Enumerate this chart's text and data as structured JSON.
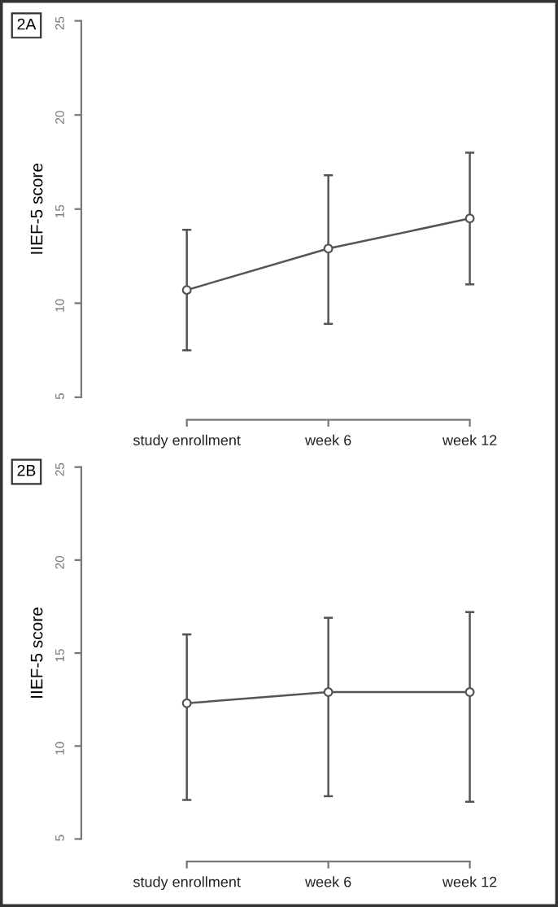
{
  "chart_data": [
    {
      "type": "line",
      "annotations": [
        "2A"
      ],
      "ylabel": "IIEF-5 score",
      "categories": [
        "study enrollment",
        "week 6",
        "week 12"
      ],
      "series": [
        {
          "color": "#555555",
          "values": [
            10.7,
            12.9,
            14.5
          ],
          "errors": [
            [
              7.5,
              13.9
            ],
            [
              8.9,
              16.8
            ],
            [
              11.0,
              18.0
            ]
          ]
        }
      ],
      "ylim": [
        5,
        25
      ],
      "yticks": [
        5,
        10,
        15,
        20,
        25
      ],
      "marker": "circle",
      "line_style": "solid"
    },
    {
      "type": "line",
      "annotations": [
        "2B"
      ],
      "ylabel": "IIEF-5 score",
      "categories": [
        "study enrollment",
        "week 6",
        "week 12"
      ],
      "series": [
        {
          "color": "#555555",
          "values": [
            12.3,
            12.9,
            12.9
          ],
          "errors": [
            [
              7.1,
              16.0
            ],
            [
              7.3,
              16.9
            ],
            [
              7.0,
              17.2
            ]
          ]
        }
      ],
      "ylim": [
        5,
        25
      ],
      "yticks": [
        5,
        10,
        15,
        20,
        25
      ],
      "marker": "circle",
      "line_style": "solid"
    }
  ]
}
